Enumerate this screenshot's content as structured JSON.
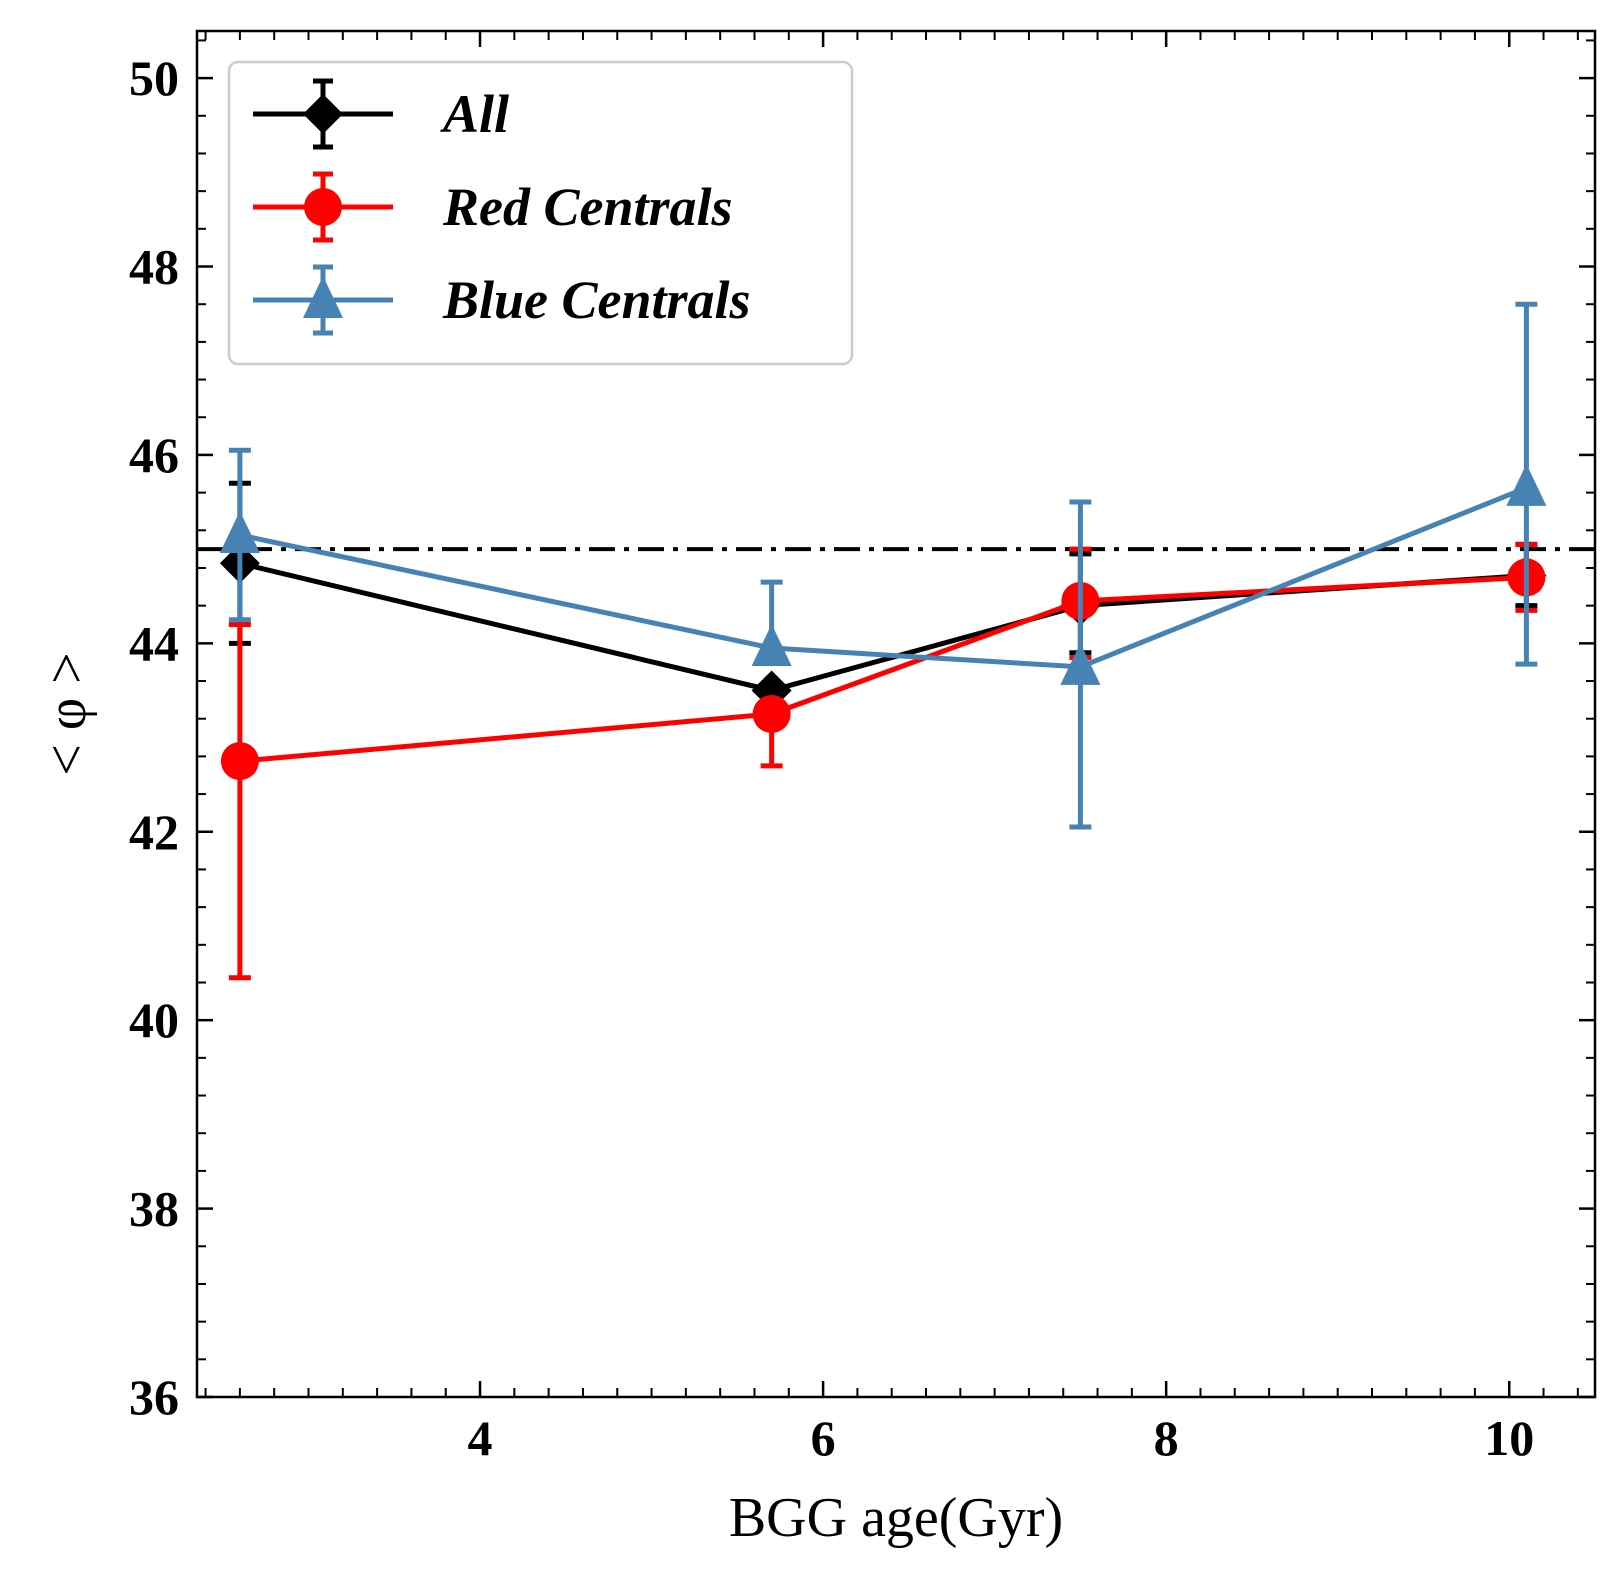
{
  "chart_data": {
    "type": "line",
    "xlabel": "BGG age(Gyr)",
    "ylabel": "< φ >",
    "xlim": [
      2.35,
      10.5
    ],
    "ylim": [
      36,
      50.5
    ],
    "xticks": [
      4,
      6,
      8,
      10
    ],
    "yticks": [
      36,
      38,
      40,
      42,
      44,
      46,
      48,
      50
    ],
    "x_minor_step": 0.2,
    "y_minor_step": 0.4,
    "tick_direction": "in",
    "ticks_on_all_sides": true,
    "grid": false,
    "legend_position": "top-left",
    "reference_line": {
      "y": 45,
      "style": "dash-dot",
      "color": "#000000"
    },
    "series": [
      {
        "name": "All",
        "color": "#000000",
        "marker": "diamond",
        "x": [
          2.6,
          5.7,
          7.5,
          10.1
        ],
        "y": [
          44.85,
          43.5,
          44.4,
          44.72
        ],
        "yerr_low": [
          44.0,
          43.5,
          43.9,
          44.4
        ],
        "yerr_high": [
          45.7,
          43.5,
          44.95,
          45.05
        ]
      },
      {
        "name": "Red Centrals",
        "color": "#ff0000",
        "marker": "circle",
        "x": [
          2.6,
          5.7,
          7.5,
          10.1
        ],
        "y": [
          42.75,
          43.25,
          44.45,
          44.7
        ],
        "yerr_low": [
          40.45,
          42.7,
          43.85,
          44.35
        ],
        "yerr_high": [
          44.2,
          43.25,
          45.0,
          45.05
        ]
      },
      {
        "name": "Blue Centrals",
        "color": "#4682b4",
        "marker": "triangle",
        "x": [
          2.6,
          5.7,
          7.5,
          10.1
        ],
        "y": [
          45.15,
          43.95,
          43.75,
          45.65
        ],
        "yerr_low": [
          44.25,
          43.95,
          42.05,
          43.78
        ],
        "yerr_high": [
          46.05,
          44.65,
          45.5,
          47.6
        ]
      }
    ]
  }
}
